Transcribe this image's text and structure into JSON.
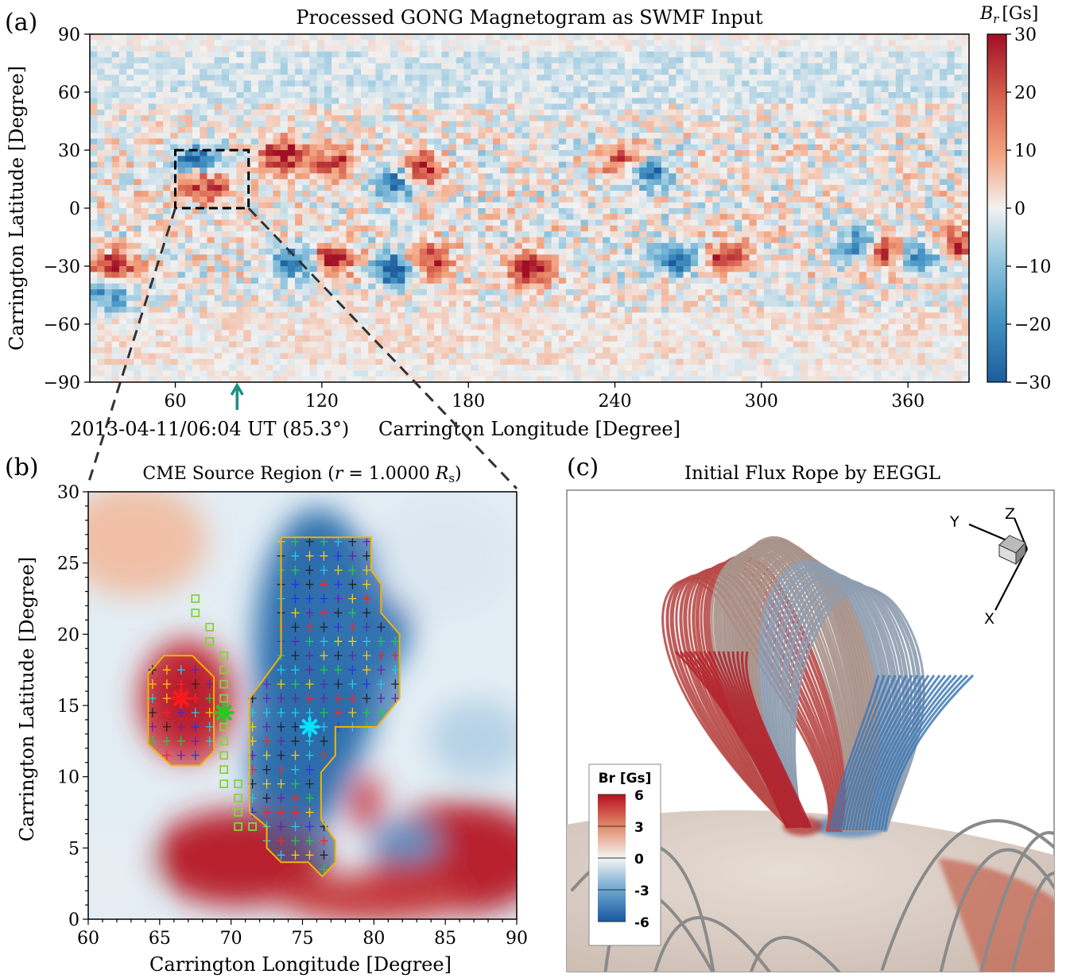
{
  "chart_data": [
    {
      "type": "heatmap",
      "panel_label": "(a)",
      "title": "Processed GONG Magnetogram as SWMF Input",
      "xlabel": "Carrington Longitude [Degree]",
      "ylabel": "Carrington Latitude [Degree]",
      "xlim": [
        25,
        385
      ],
      "ylim": [
        -90,
        90
      ],
      "xticks": [
        60,
        120,
        180,
        240,
        300,
        360
      ],
      "yticks": [
        90,
        60,
        30,
        0,
        -30,
        -60,
        -90
      ],
      "ytick_labels": [
        "90",
        "60",
        "30",
        "0",
        "−30",
        "−60",
        "−90"
      ],
      "colorbar": {
        "label": "B_r [Gs]",
        "label_main": "B",
        "label_sub": "r",
        "label_unit": "[Gs]",
        "range": [
          -30,
          30
        ],
        "ticks": [
          "30",
          "20",
          "10",
          "0",
          "−10",
          "−20",
          "−30"
        ],
        "colors": [
          "#1a5c9e",
          "#e8f1f7",
          "#b2182b"
        ]
      },
      "highlight_box": {
        "lon": [
          60,
          90
        ],
        "lat": [
          0,
          30
        ]
      },
      "annotation": {
        "text": "2013-04-11/06:04 UT (85.3°)",
        "lon": 85.3,
        "color": "#1a9088"
      },
      "field_regions": [
        {
          "lon": 35,
          "lat": -30,
          "sign": 1,
          "amp": 28
        },
        {
          "lon": 68,
          "lat": 24,
          "sign": -1,
          "amp": 30
        },
        {
          "lon": 72,
          "lat": 12,
          "sign": 1,
          "amp": 30
        },
        {
          "lon": 104,
          "lat": 27,
          "sign": 1,
          "amp": 30
        },
        {
          "lon": 125,
          "lat": 24,
          "sign": 1,
          "amp": 25
        },
        {
          "lon": 150,
          "lat": 15,
          "sign": -1,
          "amp": 30
        },
        {
          "lon": 160,
          "lat": 20,
          "sign": 1,
          "amp": 30
        },
        {
          "lon": 110,
          "lat": -28,
          "sign": -1,
          "amp": 30
        },
        {
          "lon": 124,
          "lat": -26,
          "sign": 1,
          "amp": 30
        },
        {
          "lon": 150,
          "lat": -32,
          "sign": -1,
          "amp": 30
        },
        {
          "lon": 165,
          "lat": -27,
          "sign": 1,
          "amp": 30
        },
        {
          "lon": 205,
          "lat": -32,
          "sign": 1,
          "amp": 30
        },
        {
          "lon": 253,
          "lat": 20,
          "sign": -1,
          "amp": 30
        },
        {
          "lon": 245,
          "lat": 24,
          "sign": 1,
          "amp": 25
        },
        {
          "lon": 265,
          "lat": -26,
          "sign": -1,
          "amp": 25
        },
        {
          "lon": 285,
          "lat": -25,
          "sign": 1,
          "amp": 25
        },
        {
          "lon": 350,
          "lat": -23,
          "sign": 1,
          "amp": 30
        },
        {
          "lon": 340,
          "lat": -20,
          "sign": -1,
          "amp": 25
        },
        {
          "lon": 365,
          "lat": -25,
          "sign": -1,
          "amp": 25
        },
        {
          "lon": 380,
          "lat": -18,
          "sign": 1,
          "amp": 25
        },
        {
          "lon": 33,
          "lat": -45,
          "sign": -1,
          "amp": 20
        }
      ]
    },
    {
      "type": "heatmap",
      "panel_label": "(b)",
      "title_main": "CME Source Region (",
      "title_r": "r",
      "title_eq": " = 1.0000 ",
      "title_R": "R",
      "title_sub": "s",
      "title_close": ")",
      "xlabel": "Carrington Longitude [Degree]",
      "ylabel": "Carrington Latitude [Degree]",
      "xlim": [
        60,
        90
      ],
      "ylim": [
        0,
        30
      ],
      "xticks": [
        60,
        65,
        70,
        75,
        80,
        85,
        90
      ],
      "yticks": [
        0,
        5,
        10,
        15,
        20,
        25,
        30
      ],
      "positive_center": {
        "lon": 66.5,
        "lat": 15.5,
        "color": "#ff1a1a"
      },
      "negative_center": {
        "lon": 75.5,
        "lat": 13.5,
        "color": "#00e5ff"
      },
      "pil_center": {
        "lon": 69.5,
        "lat": 14.5,
        "color": "#22cc22"
      },
      "pil_squares": [
        [
          67.5,
          22.5
        ],
        [
          67.5,
          21.5
        ],
        [
          68.5,
          20.5
        ],
        [
          68.5,
          19.5
        ],
        [
          69.5,
          18.5
        ],
        [
          69.5,
          17.5
        ],
        [
          69.5,
          16.5
        ],
        [
          69.5,
          15.5
        ],
        [
          69.5,
          13.5
        ],
        [
          69.5,
          12.5
        ],
        [
          69.5,
          11.5
        ],
        [
          69.5,
          10.5
        ],
        [
          69.5,
          9.5
        ],
        [
          70.5,
          9.5
        ],
        [
          70.5,
          8.5
        ],
        [
          70.5,
          7.5
        ],
        [
          70.5,
          6.5
        ],
        [
          71.5,
          6.5
        ]
      ],
      "positive_outline": [
        [
          65.3,
          18.5
        ],
        [
          67.3,
          18.5
        ],
        [
          68.8,
          17.0
        ],
        [
          68.8,
          11.8
        ],
        [
          67.8,
          10.8
        ],
        [
          65.8,
          10.8
        ],
        [
          64.2,
          12.3
        ],
        [
          64.2,
          17.2
        ]
      ],
      "negative_outline": [
        [
          73.5,
          26.8
        ],
        [
          79.8,
          26.8
        ],
        [
          79.8,
          24.5
        ],
        [
          80.5,
          23.5
        ],
        [
          80.5,
          21.5
        ],
        [
          81.8,
          20.0
        ],
        [
          81.8,
          15.5
        ],
        [
          80.2,
          13.5
        ],
        [
          77.3,
          13.5
        ],
        [
          77.3,
          11.5
        ],
        [
          76.3,
          10.3
        ],
        [
          76.3,
          7.0
        ],
        [
          77.3,
          5.5
        ],
        [
          77.3,
          4.0
        ],
        [
          76.4,
          3.0
        ],
        [
          75.4,
          4.0
        ],
        [
          73.5,
          4.0
        ],
        [
          72.5,
          5.0
        ],
        [
          72.5,
          6.5
        ],
        [
          71.3,
          7.5
        ],
        [
          71.3,
          15.5
        ],
        [
          73.5,
          18.5
        ],
        [
          73.5,
          26.8
        ]
      ],
      "plus_colors": [
        "#2233ee",
        "#22ccee",
        "#22cc44",
        "#ffcc00",
        "#ff2222",
        "#222222",
        "#6622aa"
      ]
    },
    {
      "type": "other",
      "panel_label": "(c)",
      "title": "Initial Flux Rope by EEGGL",
      "axes_labels": [
        "Y",
        "Z",
        "X"
      ],
      "legend_title": "Br [Gs]",
      "legend_ticks": [
        "6",
        "3",
        "0",
        "-3",
        "-6"
      ]
    }
  ]
}
